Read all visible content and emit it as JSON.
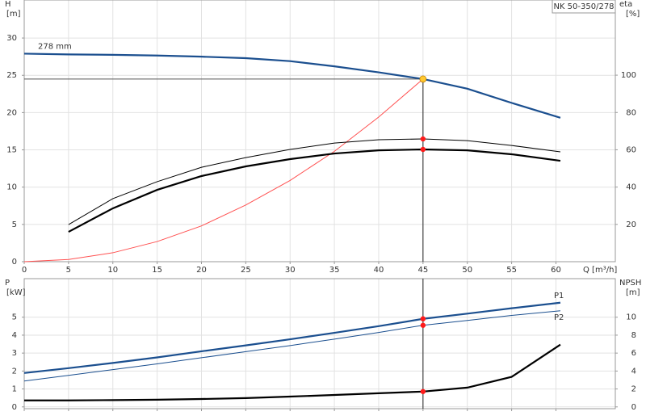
{
  "chart_data": [
    {
      "type": "line",
      "model_label": "NK 50-350/278",
      "ylabel": [
        "H",
        "[m]"
      ],
      "y2label": [
        "eta",
        "[%]"
      ],
      "xlabel": "Q [m³/h]",
      "x": [
        0,
        5,
        10,
        15,
        20,
        25,
        30,
        35,
        40,
        45,
        50,
        55,
        60.5
      ],
      "xlim": [
        0,
        66.7
      ],
      "xticks": [
        0,
        5,
        10,
        15,
        20,
        25,
        30,
        35,
        40,
        45,
        50,
        55,
        60
      ],
      "ylim": [
        0,
        35.1
      ],
      "yticks": [
        0,
        5,
        10,
        15,
        20,
        25,
        30
      ],
      "y2lim": [
        0,
        140.3
      ],
      "y2ticks": [
        20,
        40,
        60,
        80,
        100
      ],
      "grid": true,
      "duty_point": {
        "x": 45,
        "y": 24.5,
        "color": "#ffc830"
      },
      "series": [
        {
          "name": "278 mm",
          "label_pos": "start-above",
          "color": "#1b4f8f",
          "style": "thick",
          "values": [
            27.9,
            27.8,
            27.75,
            27.65,
            27.5,
            27.3,
            26.9,
            26.2,
            25.4,
            24.5,
            23.2,
            21.3,
            19.3
          ]
        },
        {
          "color": "#ff5050",
          "style": "thin",
          "values": [
            0,
            0.3,
            1.2,
            2.7,
            4.8,
            7.6,
            10.9,
            14.8,
            19.4,
            24.5,
            null,
            null,
            null
          ]
        },
        {
          "color": "#000000",
          "style": "thin",
          "axis": "y2",
          "marker_color": "#ff1a1a",
          "values": [
            null,
            19.9,
            33.8,
            42.9,
            50.6,
            55.8,
            60.2,
            63.6,
            65.4,
            65.8,
            64.9,
            62.3,
            58.9
          ]
        },
        {
          "color": "#000000",
          "style": "thick",
          "axis": "y2",
          "marker_color": "#ff1a1a",
          "values": [
            null,
            16.0,
            28.6,
            38.5,
            45.9,
            51.1,
            55.0,
            58.0,
            59.7,
            60.2,
            59.7,
            57.6,
            54.1
          ]
        }
      ]
    },
    {
      "type": "line",
      "ylabel": [
        "P",
        "[kW]"
      ],
      "y2label": [
        "NPSH",
        "[m]"
      ],
      "x": [
        0,
        5,
        10,
        15,
        20,
        25,
        30,
        35,
        40,
        45,
        50,
        55,
        60.5
      ],
      "xlim": [
        0,
        66.7
      ],
      "xticks": [
        0,
        5,
        10,
        15,
        20,
        25,
        30,
        35,
        40,
        45,
        50,
        55,
        60
      ],
      "ylim": [
        -0.1,
        7.15
      ],
      "yticks": [
        0,
        1,
        2,
        3,
        4,
        5
      ],
      "y2lim": [
        -0.2,
        14.3
      ],
      "y2ticks": [
        0,
        2,
        4,
        6,
        8,
        10
      ],
      "grid": true,
      "duty_point": {
        "x": 45
      },
      "series": [
        {
          "name": "P1",
          "label_pos": "end-above",
          "color": "#1b4f8f",
          "style": "thick",
          "marker_color": "#ff1a1a",
          "values": [
            1.89,
            2.16,
            2.45,
            2.76,
            3.1,
            3.43,
            3.77,
            4.13,
            4.5,
            4.91,
            5.2,
            5.5,
            5.81
          ]
        },
        {
          "name": "P2",
          "label_pos": "end-below",
          "color": "#1b4f8f",
          "style": "thin",
          "marker_color": "#ff1a1a",
          "values": [
            1.44,
            1.76,
            2.08,
            2.4,
            2.74,
            3.08,
            3.42,
            3.78,
            4.15,
            4.55,
            4.82,
            5.1,
            5.36
          ]
        },
        {
          "color": "#000000",
          "style": "thick",
          "axis": "y2",
          "marker_color": "#ff1a1a",
          "values": [
            0.72,
            0.72,
            0.76,
            0.8,
            0.88,
            0.98,
            1.15,
            1.33,
            1.52,
            1.71,
            2.15,
            3.35,
            6.94
          ]
        }
      ]
    }
  ]
}
